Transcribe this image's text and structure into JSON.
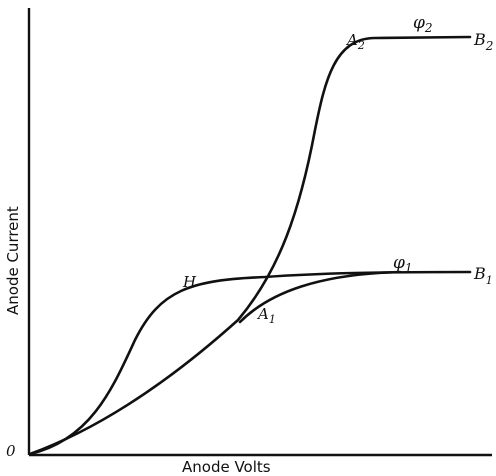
{
  "axes": {
    "x_label": "Anode Volts",
    "y_label": "Anode Current",
    "origin_label": "0"
  },
  "curve_labels": {
    "a2": "A",
    "a2_sub": "2",
    "phi2": "φ",
    "phi2_sub": "2",
    "b2": "B",
    "b2_sub": "2",
    "h": "H",
    "phi1": "φ",
    "phi1_sub": "1",
    "b1": "B",
    "b1_sub": "1",
    "a1": "A",
    "a1_sub": "1"
  }
}
